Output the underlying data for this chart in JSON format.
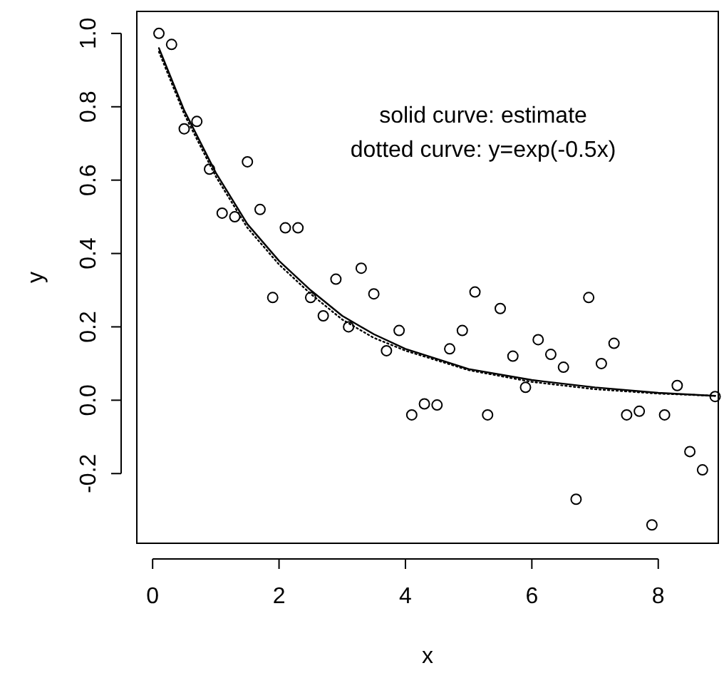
{
  "chart_data": {
    "type": "scatter",
    "xlabel": "x",
    "ylabel": "y",
    "xlim": [
      -0.25,
      8.95
    ],
    "ylim": [
      -0.39,
      1.06
    ],
    "xticks": [
      0,
      2,
      4,
      6,
      8
    ],
    "yticks": [
      {
        "value": -0.2,
        "label": "-0.2"
      },
      {
        "value": 0,
        "label": "0.0"
      },
      {
        "value": 0.2,
        "label": "0.2"
      },
      {
        "value": 0.4,
        "label": "0.4"
      },
      {
        "value": 0.6,
        "label": "0.6"
      },
      {
        "value": 0.8,
        "label": "0.8"
      },
      {
        "value": 1,
        "label": "1.0"
      }
    ],
    "grid": false,
    "annotations": [
      "solid curve: estimate",
      "dotted curve: y=exp(-0.5x)"
    ],
    "series": [
      {
        "color": "#000000",
        "marker": "circle",
        "x": [
          0.1,
          0.3,
          0.5,
          0.7,
          0.9,
          1.1,
          1.3,
          1.5,
          1.7,
          1.9,
          2.1,
          2.3,
          2.5,
          2.7,
          2.9,
          3.1,
          3.3,
          3.5,
          3.7,
          3.9,
          4.1,
          4.3,
          4.5,
          4.7,
          4.9,
          5.1,
          5.3,
          5.5,
          5.7,
          5.9,
          6.1,
          6.3,
          6.5,
          6.7,
          6.9,
          7.1,
          7.3,
          7.5,
          7.7,
          7.9,
          8.1,
          8.3,
          8.5,
          8.7,
          8.9
        ],
        "values": [
          1.0,
          0.97,
          0.74,
          0.76,
          0.63,
          0.51,
          0.5,
          0.65,
          0.52,
          0.28,
          0.47,
          0.47,
          0.28,
          0.23,
          0.33,
          0.2,
          0.36,
          0.29,
          0.135,
          0.19,
          -0.04,
          -0.01,
          -0.013,
          0.14,
          0.19,
          0.295,
          -0.04,
          0.25,
          0.12,
          0.035,
          0.165,
          0.125,
          0.09,
          -0.27,
          0.28,
          0.1,
          0.155,
          -0.04,
          -0.03,
          -0.34,
          -0.04,
          0.04,
          -0.14,
          -0.19,
          0.01
        ]
      },
      {
        "type": "line",
        "color": "#000000",
        "line_style": "solid",
        "x": [
          0.1,
          0.5,
          1,
          1.5,
          2,
          2.5,
          3,
          3.5,
          4,
          5,
          6,
          7,
          8,
          8.9
        ],
        "values": [
          0.96,
          0.79,
          0.62,
          0.48,
          0.38,
          0.3,
          0.23,
          0.18,
          0.14,
          0.085,
          0.055,
          0.035,
          0.02,
          0.012
        ]
      },
      {
        "type": "line",
        "color": "#000000",
        "line_style": "dotted",
        "x": [
          0.1,
          0.5,
          1,
          1.5,
          2,
          2.5,
          3,
          3.5,
          4,
          5,
          6,
          7,
          8,
          8.9
        ],
        "values": [
          0.95,
          0.78,
          0.61,
          0.47,
          0.37,
          0.29,
          0.22,
          0.17,
          0.135,
          0.082,
          0.05,
          0.03,
          0.018,
          0.012
        ]
      }
    ]
  }
}
